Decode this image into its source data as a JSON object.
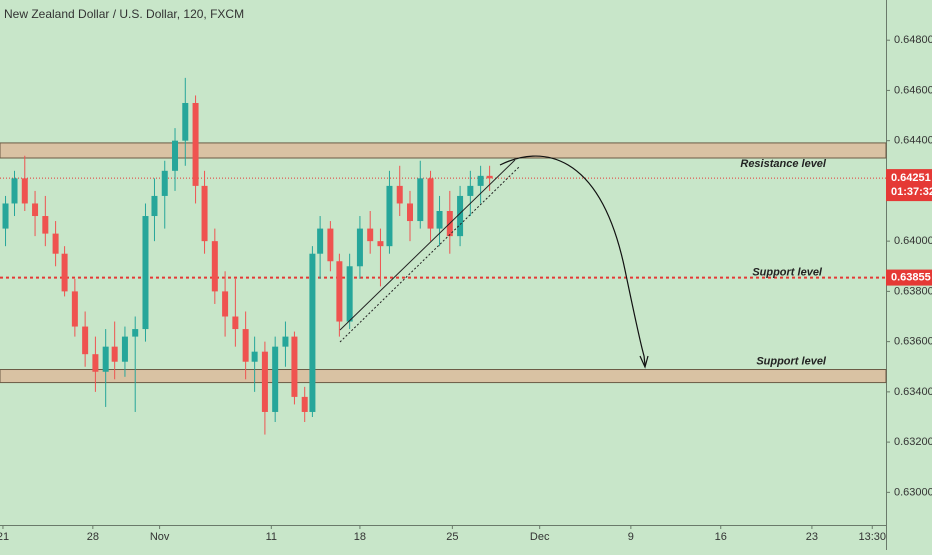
{
  "chart_data": {
    "type": "candlestick",
    "title": "New Zealand Dollar / U.S. Dollar, 120, FXCM",
    "x": [
      0.2,
      0.9,
      1.7,
      2.5,
      3.3,
      4.1,
      4.8,
      5.6,
      6.4,
      7.2,
      8.0,
      8.7,
      9.5,
      10.3,
      11.1,
      11.8,
      12.6,
      13.4,
      14.2,
      15.0,
      15.7,
      16.5,
      17.3,
      18.1,
      18.9,
      19.6,
      20.4,
      21.2,
      22.0,
      22.7,
      23.5,
      24.1,
      24.7,
      25.5,
      26.2,
      27.0,
      27.8,
      28.6,
      29.4,
      30.1,
      30.9,
      31.7,
      32.5,
      33.3,
      34.0,
      34.8,
      35.6,
      36.4,
      37.2,
      37.9
    ],
    "open": [
      0.6405,
      0.6415,
      0.6425,
      0.6415,
      0.641,
      0.6403,
      0.6395,
      0.638,
      0.6366,
      0.6355,
      0.6348,
      0.6358,
      0.6352,
      0.6362,
      0.6365,
      0.641,
      0.6418,
      0.6428,
      0.644,
      0.6455,
      0.6422,
      0.64,
      0.638,
      0.637,
      0.6365,
      0.6352,
      0.6356,
      0.6332,
      0.6358,
      0.6362,
      0.6338,
      0.6332,
      0.6395,
      0.6405,
      0.6392,
      0.6368,
      0.639,
      0.6405,
      0.64,
      0.6398,
      0.6422,
      0.6415,
      0.6408,
      0.6425,
      0.6405,
      0.6412,
      0.6402,
      0.6418,
      0.6422,
      0.6426
    ],
    "high": [
      0.6418,
      0.6428,
      0.6434,
      0.642,
      0.6418,
      0.6408,
      0.6398,
      0.6385,
      0.6372,
      0.6362,
      0.6365,
      0.6368,
      0.6366,
      0.637,
      0.6415,
      0.6425,
      0.6432,
      0.6445,
      0.6465,
      0.6458,
      0.6428,
      0.6405,
      0.6388,
      0.6385,
      0.6372,
      0.6362,
      0.636,
      0.6362,
      0.6368,
      0.6364,
      0.6342,
      0.6398,
      0.641,
      0.6408,
      0.6395,
      0.6395,
      0.641,
      0.6412,
      0.6405,
      0.6428,
      0.643,
      0.642,
      0.6432,
      0.6428,
      0.6418,
      0.642,
      0.6422,
      0.6428,
      0.643,
      0.643
    ],
    "low": [
      0.6398,
      0.641,
      0.6412,
      0.6402,
      0.6398,
      0.639,
      0.6378,
      0.6362,
      0.635,
      0.634,
      0.6334,
      0.6345,
      0.6346,
      0.6332,
      0.636,
      0.64,
      0.6405,
      0.642,
      0.643,
      0.6415,
      0.6395,
      0.6375,
      0.6362,
      0.6358,
      0.6345,
      0.634,
      0.6323,
      0.6328,
      0.635,
      0.6335,
      0.6328,
      0.633,
      0.6385,
      0.6388,
      0.6362,
      0.6365,
      0.6385,
      0.6395,
      0.6382,
      0.6395,
      0.641,
      0.64,
      0.6405,
      0.64,
      0.6398,
      0.6395,
      0.6398,
      0.641,
      0.6415,
      0.642
    ],
    "close": [
      0.6415,
      0.6425,
      0.6415,
      0.641,
      0.6403,
      0.6395,
      0.638,
      0.6366,
      0.6355,
      0.6348,
      0.6358,
      0.6352,
      0.6362,
      0.6365,
      0.641,
      0.6418,
      0.6428,
      0.644,
      0.6455,
      0.6422,
      0.64,
      0.638,
      0.637,
      0.6365,
      0.6352,
      0.6356,
      0.6332,
      0.6358,
      0.6362,
      0.6338,
      0.6332,
      0.6395,
      0.6405,
      0.6392,
      0.6368,
      0.639,
      0.6405,
      0.64,
      0.6398,
      0.6422,
      0.6415,
      0.6408,
      0.6425,
      0.6405,
      0.6412,
      0.6402,
      0.6418,
      0.6422,
      0.6426,
      0.6425
    ],
    "up_color": "#26a69a",
    "down_color": "#ef5350",
    "xlim": [
      -0.23,
      68.77
    ],
    "ylim": [
      0.6287,
      0.6496
    ],
    "xticks": [
      {
        "value": 0,
        "label": "21"
      },
      {
        "value": 7,
        "label": "28"
      },
      {
        "value": 12.2,
        "label": "Nov"
      },
      {
        "value": 20.9,
        "label": "11"
      },
      {
        "value": 27.8,
        "label": "18"
      },
      {
        "value": 35,
        "label": "25"
      },
      {
        "value": 41.8,
        "label": "Dec"
      },
      {
        "value": 48.9,
        "label": "9"
      },
      {
        "value": 55.9,
        "label": "16"
      },
      {
        "value": 63,
        "label": "23"
      },
      {
        "value": 67.7,
        "label": "13:30"
      }
    ],
    "yticks": [
      {
        "value": 0.648,
        "label": "0.64800"
      },
      {
        "value": 0.646,
        "label": "0.64600"
      },
      {
        "value": 0.644,
        "label": "0.64400"
      },
      {
        "value": 0.642,
        "label": "0.64200"
      },
      {
        "value": 0.64,
        "label": "0.64000"
      },
      {
        "value": 0.638,
        "label": "0.63800"
      },
      {
        "value": 0.636,
        "label": "0.63600"
      },
      {
        "value": 0.634,
        "label": "0.63400"
      },
      {
        "value": 0.632,
        "label": "0.63200"
      },
      {
        "value": 0.63,
        "label": "0.63000"
      }
    ],
    "zones": [
      {
        "label": "Resistance level",
        "range": [
          0.64331,
          0.64391
        ]
      },
      {
        "label": "Support level",
        "range": [
          0.63437,
          0.63489
        ]
      }
    ],
    "support_line": {
      "label": "Support level",
      "value": 0.63855
    },
    "last_price": {
      "value": 0.64251,
      "countdown": "01:37:32"
    }
  }
}
